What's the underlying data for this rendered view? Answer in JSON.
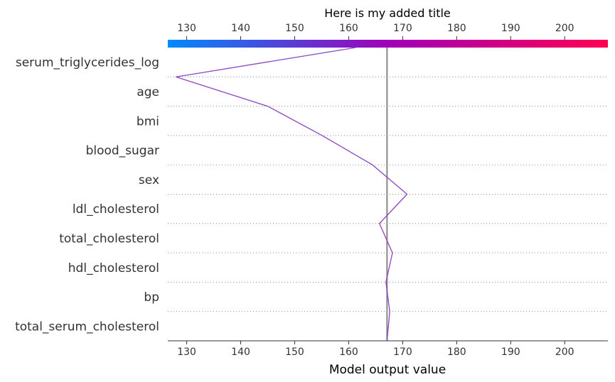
{
  "chart_data": {
    "type": "line",
    "chart_kind": "decision-plot",
    "title": "Here is my added title",
    "xlabel": "Model output value",
    "xlim": [
      126.5,
      208.0
    ],
    "x_ticks": [
      130,
      140,
      150,
      160,
      170,
      180,
      190,
      200
    ],
    "base_value": 167.1,
    "features": [
      "serum_triglycerides_log",
      "age",
      "bmi",
      "blood_sugar",
      "sex",
      "ldl_cholesterol",
      "total_cholesterol",
      "hdl_cholesterol",
      "bp",
      "total_serum_cholesterol"
    ],
    "series": [
      {
        "values": [
          161.3,
          128.0,
          145.0,
          155.1,
          164.4,
          170.8,
          165.7,
          168.1,
          166.9,
          167.6,
          167.1
        ],
        "color": "#8c44c3"
      }
    ],
    "colorbar": {
      "min_color": "#008bfb",
      "max_color": "#ff0052"
    },
    "grid": "dotted horizontal"
  }
}
